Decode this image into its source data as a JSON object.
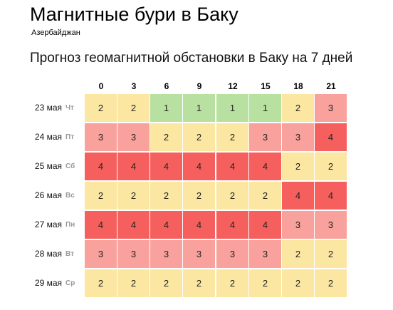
{
  "header": {
    "title": "Магнитные бури в Баку",
    "region": "Азербайджан",
    "forecast_title": "Прогноз геомагнитной обстановки в Баку на 7 дней"
  },
  "table": {
    "hours": [
      "0",
      "3",
      "6",
      "9",
      "12",
      "15",
      "18",
      "21"
    ],
    "rows": [
      {
        "date": "23 мая",
        "dow": "Чт",
        "values": [
          2,
          2,
          1,
          1,
          1,
          1,
          2,
          3
        ]
      },
      {
        "date": "24 мая",
        "dow": "Пт",
        "values": [
          3,
          3,
          2,
          2,
          2,
          3,
          3,
          4
        ]
      },
      {
        "date": "25 мая",
        "dow": "Сб",
        "values": [
          4,
          4,
          4,
          4,
          4,
          4,
          2,
          2
        ]
      },
      {
        "date": "26 мая",
        "dow": "Вс",
        "values": [
          2,
          2,
          2,
          2,
          2,
          2,
          4,
          4
        ]
      },
      {
        "date": "27 мая",
        "dow": "Пн",
        "values": [
          4,
          4,
          4,
          4,
          4,
          4,
          3,
          3
        ]
      },
      {
        "date": "28 мая",
        "dow": "Вт",
        "values": [
          3,
          3,
          3,
          3,
          3,
          3,
          2,
          2
        ]
      },
      {
        "date": "29 мая",
        "dow": "Ср",
        "values": [
          2,
          2,
          2,
          2,
          2,
          2,
          2,
          2
        ]
      }
    ]
  },
  "colors": {
    "1": "#b8e0a0",
    "2": "#fbe6a2",
    "3": "#f9a19c",
    "4": "#f5605e"
  }
}
